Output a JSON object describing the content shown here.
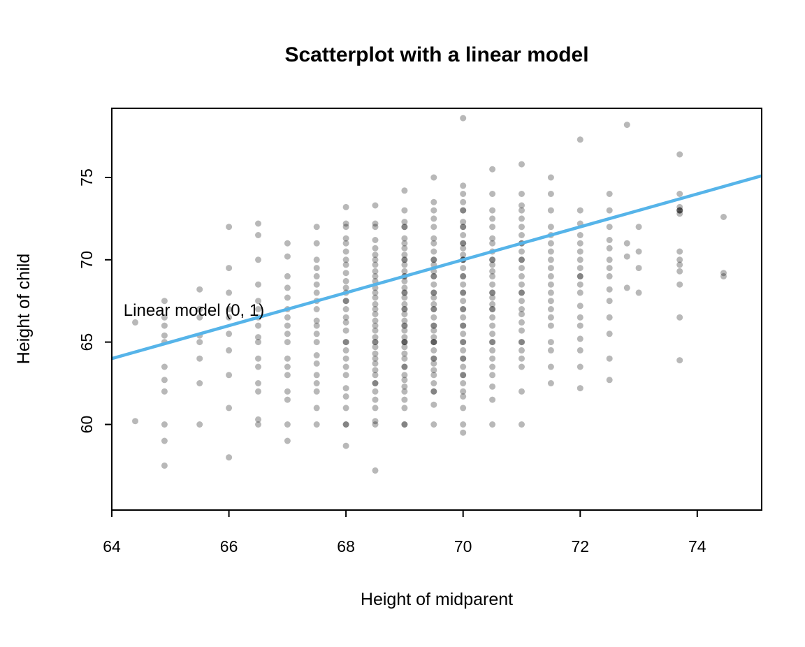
{
  "chart_data": {
    "type": "scatter",
    "title": "Scatterplot with a linear model",
    "xlabel": "Height of midparent",
    "ylabel": "Height of child",
    "xlim": [
      64.0,
      75.1
    ],
    "ylim": [
      54.8,
      79.2
    ],
    "xticks": [
      64,
      66,
      68,
      70,
      72,
      74
    ],
    "yticks": [
      60,
      65,
      70,
      75
    ],
    "grid": false,
    "legend": "none",
    "point_color": "#000000",
    "point_opacity": 0.28,
    "point_radius": 4.5,
    "line": {
      "label": "Linear model (0, 1)",
      "intercept": 0,
      "slope": 1,
      "color": "#56B4E9",
      "width": 4.5,
      "label_color": "#333388",
      "label_x": 64.2,
      "label_y": 66.6
    },
    "points": [
      [
        64.4,
        60.2
      ],
      [
        64.4,
        66.2
      ],
      [
        64.9,
        57.5
      ],
      [
        64.9,
        59.0
      ],
      [
        64.9,
        60.0
      ],
      [
        64.9,
        62.0
      ],
      [
        64.9,
        62.7
      ],
      [
        64.9,
        63.5
      ],
      [
        64.9,
        65.0
      ],
      [
        64.9,
        65.4
      ],
      [
        64.9,
        66.0
      ],
      [
        64.9,
        66.5
      ],
      [
        64.9,
        67.5
      ],
      [
        65.5,
        60.0
      ],
      [
        65.5,
        62.5
      ],
      [
        65.5,
        64.0
      ],
      [
        65.5,
        65.0
      ],
      [
        65.5,
        65.4
      ],
      [
        65.5,
        66.5
      ],
      [
        65.5,
        67.0
      ],
      [
        65.5,
        68.2
      ],
      [
        66.0,
        58.0
      ],
      [
        66.0,
        61.0
      ],
      [
        66.0,
        63.0
      ],
      [
        66.0,
        64.5
      ],
      [
        66.0,
        65.5
      ],
      [
        66.0,
        66.5
      ],
      [
        66.0,
        67.0
      ],
      [
        66.0,
        68.0
      ],
      [
        66.0,
        69.5
      ],
      [
        66.0,
        72.0
      ],
      [
        66.5,
        60.0
      ],
      [
        66.5,
        60.3
      ],
      [
        66.5,
        62.0
      ],
      [
        66.5,
        62.5
      ],
      [
        66.5,
        63.5
      ],
      [
        66.5,
        64.0
      ],
      [
        66.5,
        65.0
      ],
      [
        66.5,
        65.3
      ],
      [
        66.5,
        66.0
      ],
      [
        66.5,
        66.5
      ],
      [
        66.5,
        67.0
      ],
      [
        66.5,
        67.5
      ],
      [
        66.5,
        68.5
      ],
      [
        66.5,
        70.0
      ],
      [
        66.5,
        71.5
      ],
      [
        66.5,
        72.2
      ],
      [
        67.0,
        59.0
      ],
      [
        67.0,
        60.0
      ],
      [
        67.0,
        61.5
      ],
      [
        67.0,
        62.0
      ],
      [
        67.0,
        63.0
      ],
      [
        67.0,
        63.5
      ],
      [
        67.0,
        64.0
      ],
      [
        67.0,
        65.0
      ],
      [
        67.0,
        65.5
      ],
      [
        67.0,
        66.0
      ],
      [
        67.0,
        66.5
      ],
      [
        67.0,
        67.0
      ],
      [
        67.0,
        67.7
      ],
      [
        67.0,
        68.3
      ],
      [
        67.0,
        69.0
      ],
      [
        67.0,
        70.2
      ],
      [
        67.0,
        71.0
      ],
      [
        67.5,
        60.0
      ],
      [
        67.5,
        61.0
      ],
      [
        67.5,
        62.0
      ],
      [
        67.5,
        62.5
      ],
      [
        67.5,
        63.0
      ],
      [
        67.5,
        63.7
      ],
      [
        67.5,
        64.2
      ],
      [
        67.5,
        65.0
      ],
      [
        67.5,
        65.5
      ],
      [
        67.5,
        66.0
      ],
      [
        67.5,
        66.3
      ],
      [
        67.5,
        67.0
      ],
      [
        67.5,
        67.5
      ],
      [
        67.5,
        68.0
      ],
      [
        67.5,
        68.5
      ],
      [
        67.5,
        69.0
      ],
      [
        67.5,
        69.5
      ],
      [
        67.5,
        70.0
      ],
      [
        67.5,
        71.0
      ],
      [
        67.5,
        72.0
      ],
      [
        68.0,
        58.7
      ],
      [
        68.0,
        60.0
      ],
      [
        68.0,
        60.0
      ],
      [
        68.0,
        61.0
      ],
      [
        68.0,
        61.7
      ],
      [
        68.0,
        62.2
      ],
      [
        68.0,
        63.0
      ],
      [
        68.0,
        63.5
      ],
      [
        68.0,
        64.0
      ],
      [
        68.0,
        64.5
      ],
      [
        68.0,
        65.0
      ],
      [
        68.0,
        65.0
      ],
      [
        68.0,
        65.7
      ],
      [
        68.0,
        66.2
      ],
      [
        68.0,
        66.5
      ],
      [
        68.0,
        67.0
      ],
      [
        68.0,
        67.5
      ],
      [
        68.0,
        67.5
      ],
      [
        68.0,
        68.0
      ],
      [
        68.0,
        68.3
      ],
      [
        68.0,
        68.7
      ],
      [
        68.0,
        69.2
      ],
      [
        68.0,
        69.7
      ],
      [
        68.0,
        70.0
      ],
      [
        68.0,
        70.5
      ],
      [
        68.0,
        71.0
      ],
      [
        68.0,
        71.3
      ],
      [
        68.0,
        72.0
      ],
      [
        68.0,
        72.2
      ],
      [
        68.0,
        73.2
      ],
      [
        68.5,
        57.2
      ],
      [
        68.5,
        60.0
      ],
      [
        68.5,
        60.2
      ],
      [
        68.5,
        61.0
      ],
      [
        68.5,
        61.5
      ],
      [
        68.5,
        62.0
      ],
      [
        68.5,
        62.5
      ],
      [
        68.5,
        62.5
      ],
      [
        68.5,
        63.0
      ],
      [
        68.5,
        63.3
      ],
      [
        68.5,
        63.7
      ],
      [
        68.5,
        64.0
      ],
      [
        68.5,
        64.3
      ],
      [
        68.5,
        64.7
      ],
      [
        68.5,
        65.0
      ],
      [
        68.5,
        65.0
      ],
      [
        68.5,
        65.3
      ],
      [
        68.5,
        65.7
      ],
      [
        68.5,
        66.0
      ],
      [
        68.5,
        66.3
      ],
      [
        68.5,
        66.7
      ],
      [
        68.5,
        67.0
      ],
      [
        68.5,
        67.3
      ],
      [
        68.5,
        67.7
      ],
      [
        68.5,
        68.0
      ],
      [
        68.5,
        68.3
      ],
      [
        68.5,
        68.7
      ],
      [
        68.5,
        69.0
      ],
      [
        68.5,
        69.3
      ],
      [
        68.5,
        69.7
      ],
      [
        68.5,
        70.0
      ],
      [
        68.5,
        70.3
      ],
      [
        68.5,
        70.7
      ],
      [
        68.5,
        71.2
      ],
      [
        68.5,
        72.0
      ],
      [
        68.5,
        72.2
      ],
      [
        68.5,
        73.3
      ],
      [
        69.0,
        60.0
      ],
      [
        69.0,
        60.0
      ],
      [
        69.0,
        61.0
      ],
      [
        69.0,
        61.5
      ],
      [
        69.0,
        62.0
      ],
      [
        69.0,
        62.3
      ],
      [
        69.0,
        62.7
      ],
      [
        69.0,
        63.0
      ],
      [
        69.0,
        63.5
      ],
      [
        69.0,
        63.5
      ],
      [
        69.0,
        64.0
      ],
      [
        69.0,
        64.3
      ],
      [
        69.0,
        64.7
      ],
      [
        69.0,
        65.0
      ],
      [
        69.0,
        65.0
      ],
      [
        69.0,
        65.0
      ],
      [
        69.0,
        65.3
      ],
      [
        69.0,
        65.7
      ],
      [
        69.0,
        66.0
      ],
      [
        69.0,
        66.0
      ],
      [
        69.0,
        66.3
      ],
      [
        69.0,
        66.7
      ],
      [
        69.0,
        67.0
      ],
      [
        69.0,
        67.0
      ],
      [
        69.0,
        67.3
      ],
      [
        69.0,
        67.7
      ],
      [
        69.0,
        68.0
      ],
      [
        69.0,
        68.0
      ],
      [
        69.0,
        68.3
      ],
      [
        69.0,
        68.7
      ],
      [
        69.0,
        69.0
      ],
      [
        69.0,
        69.0
      ],
      [
        69.0,
        69.3
      ],
      [
        69.0,
        69.7
      ],
      [
        69.0,
        70.0
      ],
      [
        69.0,
        70.0
      ],
      [
        69.0,
        70.3
      ],
      [
        69.0,
        70.7
      ],
      [
        69.0,
        71.0
      ],
      [
        69.0,
        71.3
      ],
      [
        69.0,
        72.0
      ],
      [
        69.0,
        72.0
      ],
      [
        69.0,
        72.3
      ],
      [
        69.0,
        73.0
      ],
      [
        69.0,
        74.2
      ],
      [
        69.5,
        60.0
      ],
      [
        69.5,
        61.2
      ],
      [
        69.5,
        62.0
      ],
      [
        69.5,
        62.0
      ],
      [
        69.5,
        62.5
      ],
      [
        69.5,
        63.0
      ],
      [
        69.5,
        63.3
      ],
      [
        69.5,
        63.7
      ],
      [
        69.5,
        64.0
      ],
      [
        69.5,
        64.0
      ],
      [
        69.5,
        64.5
      ],
      [
        69.5,
        65.0
      ],
      [
        69.5,
        65.0
      ],
      [
        69.5,
        65.0
      ],
      [
        69.5,
        65.3
      ],
      [
        69.5,
        65.7
      ],
      [
        69.5,
        66.0
      ],
      [
        69.5,
        66.0
      ],
      [
        69.5,
        66.5
      ],
      [
        69.5,
        67.0
      ],
      [
        69.5,
        67.0
      ],
      [
        69.5,
        67.3
      ],
      [
        69.5,
        67.7
      ],
      [
        69.5,
        68.0
      ],
      [
        69.5,
        68.0
      ],
      [
        69.5,
        68.5
      ],
      [
        69.5,
        69.0
      ],
      [
        69.5,
        69.0
      ],
      [
        69.5,
        69.3
      ],
      [
        69.5,
        69.7
      ],
      [
        69.5,
        70.0
      ],
      [
        69.5,
        70.0
      ],
      [
        69.5,
        70.5
      ],
      [
        69.5,
        71.0
      ],
      [
        69.5,
        71.3
      ],
      [
        69.5,
        72.0
      ],
      [
        69.5,
        72.5
      ],
      [
        69.5,
        73.0
      ],
      [
        69.5,
        73.5
      ],
      [
        69.5,
        75.0
      ],
      [
        70.0,
        59.5
      ],
      [
        70.0,
        60.0
      ],
      [
        70.0,
        61.0
      ],
      [
        70.0,
        61.7
      ],
      [
        70.0,
        62.0
      ],
      [
        70.0,
        62.5
      ],
      [
        70.0,
        63.0
      ],
      [
        70.0,
        63.0
      ],
      [
        70.0,
        63.5
      ],
      [
        70.0,
        64.0
      ],
      [
        70.0,
        64.0
      ],
      [
        70.0,
        64.5
      ],
      [
        70.0,
        65.0
      ],
      [
        70.0,
        65.0
      ],
      [
        70.0,
        65.5
      ],
      [
        70.0,
        66.0
      ],
      [
        70.0,
        66.0
      ],
      [
        70.0,
        66.5
      ],
      [
        70.0,
        67.0
      ],
      [
        70.0,
        67.0
      ],
      [
        70.0,
        67.5
      ],
      [
        70.0,
        68.0
      ],
      [
        70.0,
        68.0
      ],
      [
        70.0,
        68.5
      ],
      [
        70.0,
        69.0
      ],
      [
        70.0,
        69.0
      ],
      [
        70.0,
        69.5
      ],
      [
        70.0,
        70.0
      ],
      [
        70.0,
        70.0
      ],
      [
        70.0,
        70.0
      ],
      [
        70.0,
        70.3
      ],
      [
        70.0,
        70.7
      ],
      [
        70.0,
        71.0
      ],
      [
        70.0,
        71.0
      ],
      [
        70.0,
        71.5
      ],
      [
        70.0,
        72.0
      ],
      [
        70.0,
        72.0
      ],
      [
        70.0,
        72.3
      ],
      [
        70.0,
        73.0
      ],
      [
        70.0,
        73.0
      ],
      [
        70.0,
        73.5
      ],
      [
        70.0,
        74.0
      ],
      [
        70.0,
        74.5
      ],
      [
        70.0,
        78.6
      ],
      [
        70.5,
        60.0
      ],
      [
        70.5,
        61.5
      ],
      [
        70.5,
        62.3
      ],
      [
        70.5,
        63.0
      ],
      [
        70.5,
        63.5
      ],
      [
        70.5,
        64.0
      ],
      [
        70.5,
        64.5
      ],
      [
        70.5,
        65.0
      ],
      [
        70.5,
        65.0
      ],
      [
        70.5,
        65.5
      ],
      [
        70.5,
        66.0
      ],
      [
        70.5,
        66.5
      ],
      [
        70.5,
        67.0
      ],
      [
        70.5,
        67.0
      ],
      [
        70.5,
        67.3
      ],
      [
        70.5,
        67.7
      ],
      [
        70.5,
        68.0
      ],
      [
        70.5,
        68.0
      ],
      [
        70.5,
        68.5
      ],
      [
        70.5,
        69.0
      ],
      [
        70.5,
        69.3
      ],
      [
        70.5,
        69.7
      ],
      [
        70.5,
        70.0
      ],
      [
        70.5,
        70.0
      ],
      [
        70.5,
        70.5
      ],
      [
        70.5,
        71.0
      ],
      [
        70.5,
        71.3
      ],
      [
        70.5,
        72.0
      ],
      [
        70.5,
        72.5
      ],
      [
        70.5,
        73.0
      ],
      [
        70.5,
        74.0
      ],
      [
        70.5,
        75.5
      ],
      [
        71.0,
        60.0
      ],
      [
        71.0,
        62.0
      ],
      [
        71.0,
        63.5
      ],
      [
        71.0,
        64.0
      ],
      [
        71.0,
        64.5
      ],
      [
        71.0,
        65.0
      ],
      [
        71.0,
        65.0
      ],
      [
        71.0,
        65.7
      ],
      [
        71.0,
        66.2
      ],
      [
        71.0,
        66.7
      ],
      [
        71.0,
        67.0
      ],
      [
        71.0,
        67.5
      ],
      [
        71.0,
        68.0
      ],
      [
        71.0,
        68.0
      ],
      [
        71.0,
        68.5
      ],
      [
        71.0,
        69.0
      ],
      [
        71.0,
        69.5
      ],
      [
        71.0,
        70.0
      ],
      [
        71.0,
        70.0
      ],
      [
        71.0,
        70.5
      ],
      [
        71.0,
        71.0
      ],
      [
        71.0,
        71.0
      ],
      [
        71.0,
        71.5
      ],
      [
        71.0,
        72.0
      ],
      [
        71.0,
        72.5
      ],
      [
        71.0,
        73.0
      ],
      [
        71.0,
        73.3
      ],
      [
        71.0,
        74.0
      ],
      [
        71.0,
        75.8
      ],
      [
        71.5,
        62.5
      ],
      [
        71.5,
        63.5
      ],
      [
        71.5,
        64.5
      ],
      [
        71.5,
        65.0
      ],
      [
        71.5,
        66.0
      ],
      [
        71.5,
        66.5
      ],
      [
        71.5,
        67.0
      ],
      [
        71.5,
        67.5
      ],
      [
        71.5,
        68.0
      ],
      [
        71.5,
        68.5
      ],
      [
        71.5,
        69.0
      ],
      [
        71.5,
        69.5
      ],
      [
        71.5,
        70.0
      ],
      [
        71.5,
        70.5
      ],
      [
        71.5,
        71.0
      ],
      [
        71.5,
        71.5
      ],
      [
        71.5,
        72.0
      ],
      [
        71.5,
        73.0
      ],
      [
        71.5,
        74.0
      ],
      [
        71.5,
        75.0
      ],
      [
        72.0,
        62.2
      ],
      [
        72.0,
        63.5
      ],
      [
        72.0,
        64.5
      ],
      [
        72.0,
        65.2
      ],
      [
        72.0,
        66.0
      ],
      [
        72.0,
        66.5
      ],
      [
        72.0,
        67.2
      ],
      [
        72.0,
        68.0
      ],
      [
        72.0,
        68.5
      ],
      [
        72.0,
        69.0
      ],
      [
        72.0,
        69.0
      ],
      [
        72.0,
        69.5
      ],
      [
        72.0,
        70.0
      ],
      [
        72.0,
        70.5
      ],
      [
        72.0,
        71.0
      ],
      [
        72.0,
        71.5
      ],
      [
        72.0,
        72.2
      ],
      [
        72.0,
        73.0
      ],
      [
        72.0,
        77.3
      ],
      [
        72.5,
        62.7
      ],
      [
        72.5,
        64.0
      ],
      [
        72.5,
        65.5
      ],
      [
        72.5,
        66.5
      ],
      [
        72.5,
        67.5
      ],
      [
        72.5,
        68.2
      ],
      [
        72.5,
        69.0
      ],
      [
        72.5,
        69.5
      ],
      [
        72.5,
        70.0
      ],
      [
        72.5,
        70.7
      ],
      [
        72.5,
        71.2
      ],
      [
        72.5,
        72.0
      ],
      [
        72.5,
        73.0
      ],
      [
        72.5,
        74.0
      ],
      [
        72.8,
        68.3
      ],
      [
        72.8,
        70.2
      ],
      [
        72.8,
        71.0
      ],
      [
        72.8,
        78.2
      ],
      [
        73.0,
        68.0
      ],
      [
        73.0,
        69.5
      ],
      [
        73.0,
        70.5
      ],
      [
        73.0,
        72.0
      ],
      [
        73.7,
        63.9
      ],
      [
        73.7,
        66.5
      ],
      [
        73.7,
        68.5
      ],
      [
        73.7,
        69.3
      ],
      [
        73.7,
        69.7
      ],
      [
        73.7,
        70.0
      ],
      [
        73.7,
        70.5
      ],
      [
        73.7,
        72.8
      ],
      [
        73.7,
        73.0
      ],
      [
        73.7,
        73.0
      ],
      [
        73.7,
        73.0
      ],
      [
        73.7,
        73.2
      ],
      [
        73.7,
        74.0
      ],
      [
        73.7,
        76.4
      ],
      [
        74.45,
        69.0
      ],
      [
        74.45,
        69.2
      ],
      [
        74.45,
        72.6
      ]
    ]
  }
}
